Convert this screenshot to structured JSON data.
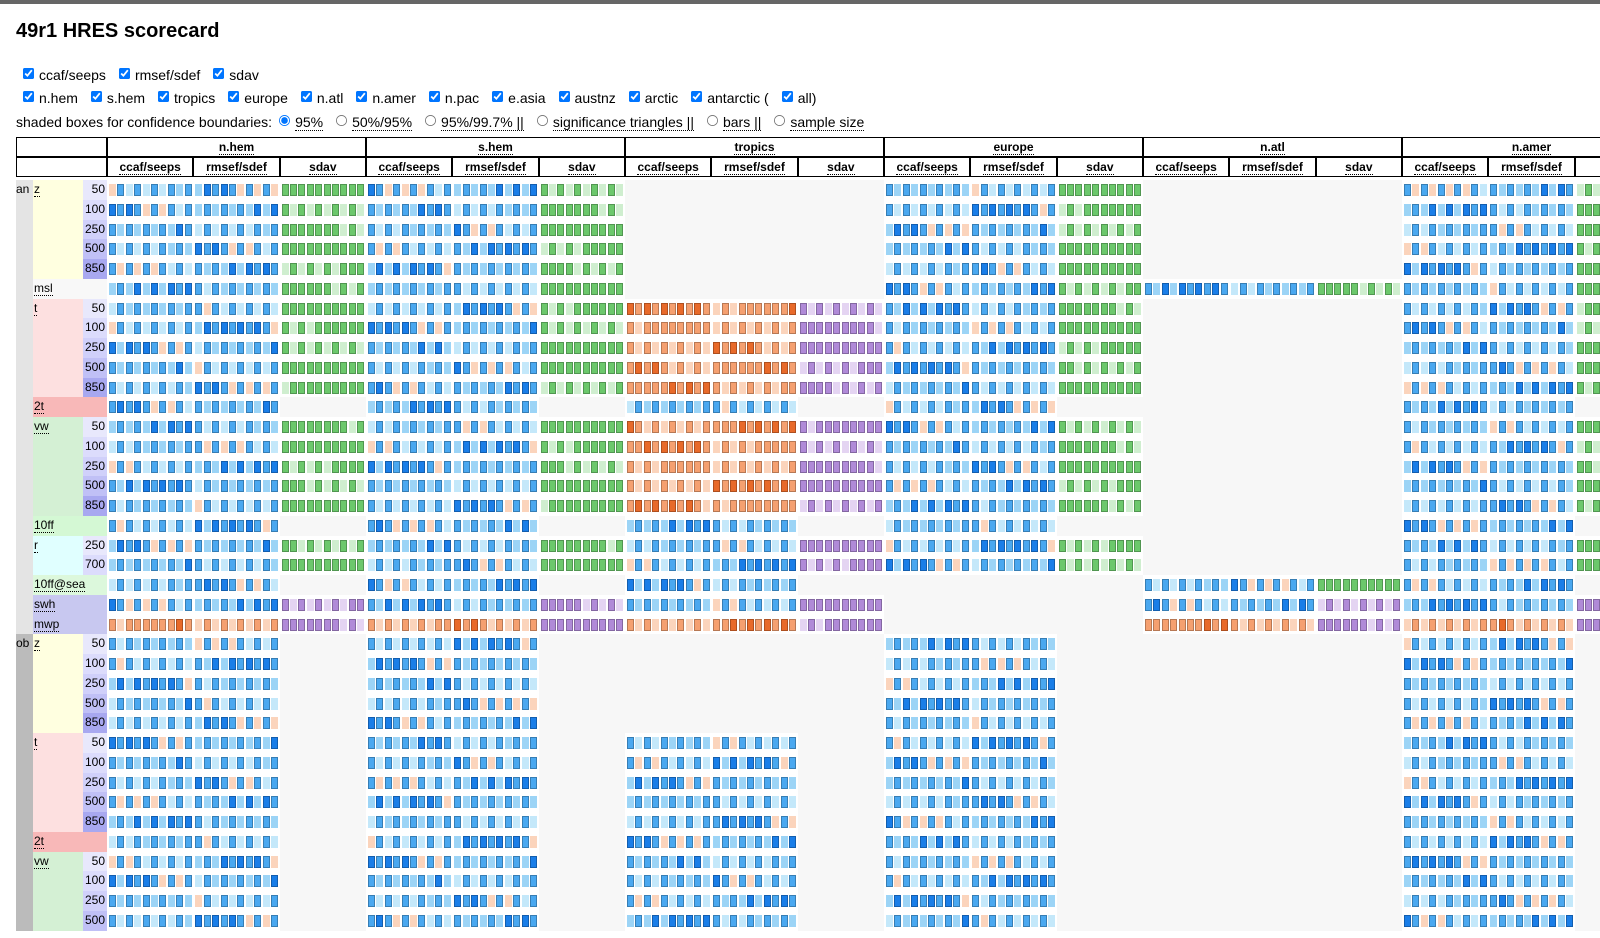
{
  "title": "49r1 HRES scorecard",
  "score_options": [
    "ccaf/seeps",
    "rmsef/sdef",
    "sdav"
  ],
  "region_options": [
    "n.hem",
    "s.hem",
    "tropics",
    "europe",
    "n.atl",
    "n.amer",
    "n.pac",
    "e.asia",
    "austnz",
    "arctic",
    "antarctic (",
    "all)"
  ],
  "confidence_label": "shaded boxes for confidence boundaries:",
  "confidence_options": [
    "95%",
    "50%/95%",
    "95%/99.7% ||",
    "significance triangles ||",
    "bars ||",
    "sample size"
  ],
  "table": {
    "regions": [
      "n.hem",
      "s.hem",
      "tropics",
      "europe",
      "n.atl",
      "n.amer"
    ],
    "scores": [
      "ccaf/seeps",
      "rmsef/sdef",
      "sdav"
    ],
    "groups": [
      {
        "name": "an",
        "params": [
          {
            "name": "z",
            "levels": [
              "50",
              "100",
              "250",
              "500",
              "850"
            ]
          },
          {
            "name": "msl",
            "levels": []
          },
          {
            "name": "t",
            "levels": [
              "50",
              "100",
              "250",
              "500",
              "850"
            ]
          },
          {
            "name": "2t",
            "levels": []
          },
          {
            "name": "vw",
            "levels": [
              "50",
              "100",
              "250",
              "500",
              "850"
            ]
          },
          {
            "name": "10ff",
            "levels": []
          },
          {
            "name": "r",
            "levels": [
              "250",
              "700"
            ]
          },
          {
            "name": "10ff@sea",
            "levels": []
          },
          {
            "name": "swh",
            "levels": []
          },
          {
            "name": "mwp",
            "levels": []
          }
        ]
      },
      {
        "name": "ob",
        "params": [
          {
            "name": "z",
            "levels": [
              "50",
              "100",
              "250",
              "500",
              "850"
            ]
          },
          {
            "name": "t",
            "levels": [
              "50",
              "100",
              "250",
              "500",
              "850"
            ]
          },
          {
            "name": "2t",
            "levels": []
          },
          {
            "name": "vw",
            "levels": [
              "50",
              "100",
              "250",
              "500"
            ]
          }
        ]
      }
    ]
  }
}
